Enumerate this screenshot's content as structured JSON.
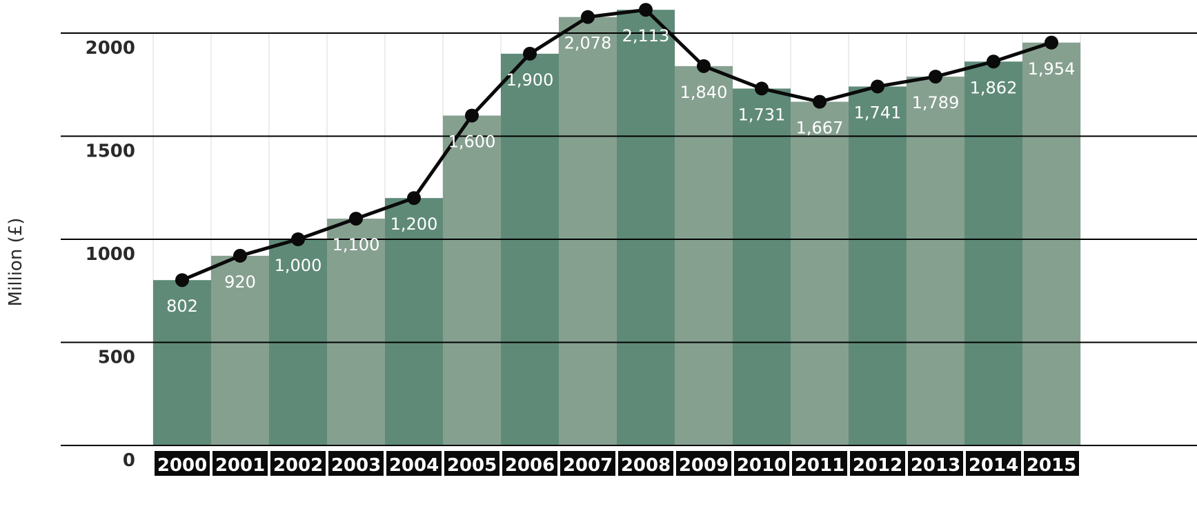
{
  "chart_data": {
    "type": "bar",
    "title": "",
    "xlabel": "",
    "ylabel": "Million (£)",
    "ylim": [
      0,
      2000
    ],
    "yticks": [
      "0",
      "500",
      "1000",
      "1500",
      "2000"
    ],
    "categories": [
      "2000",
      "2001",
      "2002",
      "2003",
      "2004",
      "2005",
      "2006",
      "2007",
      "2008",
      "2009",
      "2010",
      "2011",
      "2012",
      "2013",
      "2014",
      "2015"
    ],
    "values": [
      802,
      920,
      1000,
      1100,
      1200,
      1600,
      1900,
      2078,
      2113,
      1840,
      1731,
      1667,
      1741,
      1789,
      1862,
      1954
    ],
    "data_labels": [
      "802",
      "920",
      "1,000",
      "1,100",
      "1,200",
      "1,600",
      "1,900",
      "2,078",
      "2,113",
      "1,840",
      "1,731",
      "1,667",
      "1,741",
      "1,789",
      "1,862",
      "1,954"
    ],
    "overlay": "line with markers through bar tops",
    "grid": true,
    "colors": {
      "bar_dark": "#5f8a78",
      "bar_light": "#86a090",
      "line": "#0a0a0a",
      "label_bg": "#0a0a0a",
      "label_text": "#ffffff"
    }
  }
}
